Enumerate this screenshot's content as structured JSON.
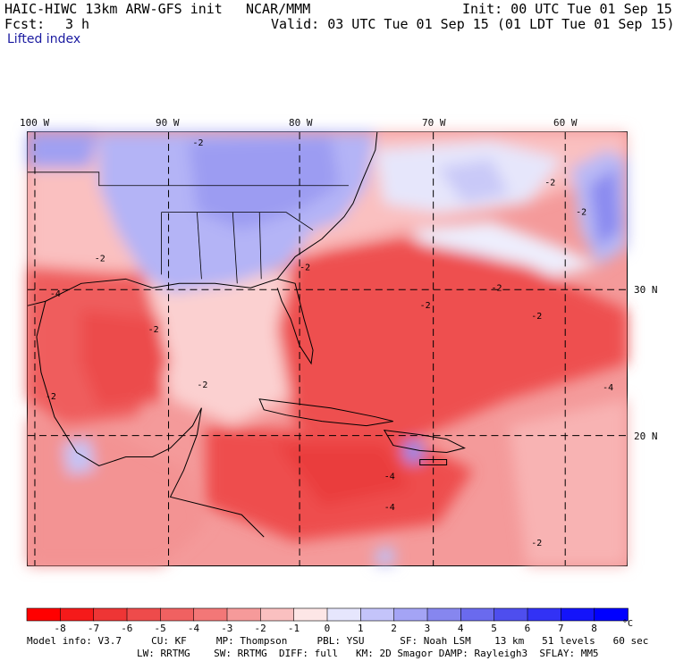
{
  "header": {
    "model": "HAIC-HIWC 13km ARW-GFS init",
    "org": "NCAR/MMM",
    "init": "Init: 00 UTC Tue 01 Sep 15",
    "fcst_label": "Fcst:",
    "fcst_value": "3 h",
    "valid": "Valid: 03 UTC Tue 01 Sep 15 (01 LDT Tue 01 Sep 15)",
    "field": "Lifted index"
  },
  "map": {
    "lon_labels": [
      "100 W",
      "90 W",
      "80 W",
      "70 W",
      "60 W"
    ],
    "lat_labels": [
      "30 N",
      "20 N"
    ],
    "contour_labels": [
      "-2",
      "-4",
      "-2"
    ]
  },
  "colorbar": {
    "labels": [
      "-8",
      "-7",
      "-6",
      "-5",
      "-4",
      "-3",
      "-2",
      "-1",
      "0",
      "1",
      "2",
      "3",
      "4",
      "5",
      "6",
      "7",
      "8"
    ],
    "unit": "°C",
    "colors": [
      "#ff0000",
      "#f51a1a",
      "#ee3535",
      "#ee4b4b",
      "#f06161",
      "#f37777",
      "#f69a9a",
      "#fac0c0",
      "#fde6e6",
      "#e6e6fd",
      "#c4c4fa",
      "#a4a4f5",
      "#8686ef",
      "#6a6aee",
      "#4e4eee",
      "#3232f5",
      "#1414fa",
      "#0000ff"
    ],
    "min": -8,
    "max": 8
  },
  "footer": {
    "line1": "Model info: V3.7     CU: KF     MP: Thompson     PBL: YSU      SF: Noah LSM    13 km   51 levels   60 sec",
    "line2": "LW: RRTMG    SW: RRTMG  DIFF: full   KM: 2D Smagor DAMP: Rayleigh3  SFLAY: MM5"
  }
}
